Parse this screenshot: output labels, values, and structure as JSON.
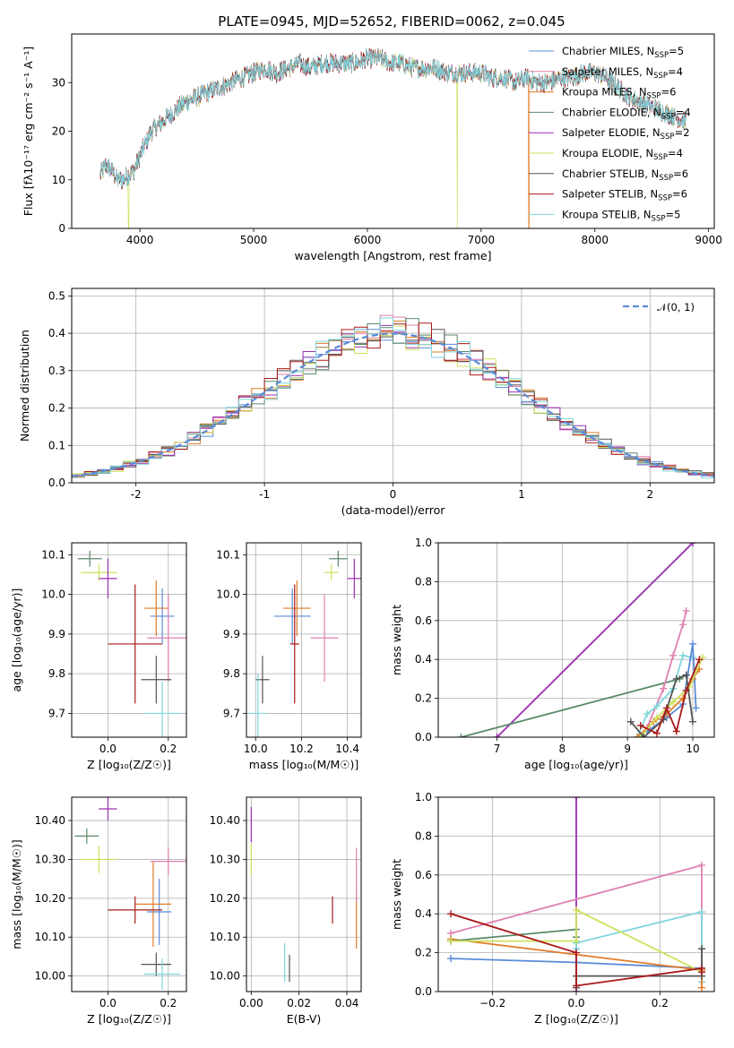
{
  "figure": {
    "title": "PLATE=0945, MJD=52652, FIBERID=0062, z=0.045"
  },
  "chart_data": [
    {
      "id": "spectrum",
      "type": "line",
      "xlabel": "wavelength [Angstrom, rest frame]",
      "ylabel": "Flux [fλ10⁻¹⁷ erg cm⁻² s⁻¹ A⁻¹]",
      "xlim": [
        3400,
        9050
      ],
      "ylim": [
        0,
        40
      ],
      "xticks": [
        4000,
        5000,
        6000,
        7000,
        8000,
        9000
      ],
      "yticks": [
        0,
        10,
        20,
        30
      ],
      "grid": false,
      "legend_position": "right",
      "spectrum_shape": {
        "x": [
          3650,
          3700,
          3750,
          3800,
          3850,
          3900,
          3950,
          4000,
          4100,
          4200,
          4300,
          4400,
          4500,
          4600,
          4700,
          4800,
          4900,
          5000,
          5100,
          5200,
          5300,
          5400,
          5500,
          5600,
          5700,
          5800,
          5900,
          6000,
          6100,
          6200,
          6300,
          6400,
          6500,
          6600,
          6700,
          6800,
          6900,
          7000,
          7100,
          7200,
          7300,
          7400,
          7500,
          7600,
          7700,
          7800,
          7900,
          8000,
          8100,
          8200,
          8300,
          8400,
          8500,
          8600,
          8700,
          8800
        ],
        "y": [
          11,
          13,
          12,
          10,
          10,
          11,
          12,
          15,
          20,
          22,
          24,
          26,
          27,
          28,
          29,
          30,
          31,
          32,
          33,
          32,
          33,
          34,
          33,
          34,
          34,
          34,
          34,
          35,
          35,
          34,
          34,
          33,
          33,
          33,
          32,
          32,
          32,
          32,
          31,
          31,
          30,
          31,
          30,
          30,
          31,
          31,
          32,
          32,
          31,
          29,
          27,
          26,
          25,
          24,
          23,
          22
        ]
      },
      "series": [
        {
          "name": "Chabrier MILES, N_SSP=5",
          "color": "#5b8bd8"
        },
        {
          "name": "Salpeter MILES, N_SSP=4",
          "color": "#e080b0"
        },
        {
          "name": "Kroupa MILES, N_SSP=6",
          "color": "#e07b27"
        },
        {
          "name": "Chabrier ELODIE, N_SSP=4",
          "color": "#5a8a6a"
        },
        {
          "name": "Salpeter ELODIE, N_SSP=2",
          "color": "#9a2fb0"
        },
        {
          "name": "Kroupa ELODIE, N_SSP=4",
          "color": "#cfe05a"
        },
        {
          "name": "Chabrier STELIB, N_SSP=6",
          "color": "#555555"
        },
        {
          "name": "Salpeter STELIB, N_SSP=6",
          "color": "#aa1a1a"
        },
        {
          "name": "Kroupa STELIB, N_SSP=5",
          "color": "#7fd6dd"
        }
      ],
      "drops": [
        {
          "series": 5,
          "x": 3900
        },
        {
          "series": 5,
          "x": 6790
        },
        {
          "series": 2,
          "x": 7420
        }
      ]
    },
    {
      "id": "residuals",
      "type": "line",
      "xlabel": "(data-model)/error",
      "ylabel": "Normed distribution",
      "xlim": [
        -2.5,
        2.5
      ],
      "ylim": [
        0,
        0.52
      ],
      "xticks": [
        -2,
        -1,
        0,
        1,
        2
      ],
      "yticks": [
        0.0,
        0.1,
        0.2,
        0.3,
        0.4,
        0.5
      ],
      "grid": true,
      "legend_position": "top-right",
      "legend": [
        "𝒩(0, 1)"
      ],
      "gaussian": {
        "mean": 0,
        "sigma": 1,
        "color": "#5b8bd8"
      },
      "histogram_series_colors": [
        "#5b8bd8",
        "#e080b0",
        "#e07b27",
        "#5a8a6a",
        "#9a2fb0",
        "#cfe05a",
        "#555555",
        "#aa1a1a",
        "#7fd6dd"
      ]
    },
    {
      "id": "age-vs-Z",
      "type": "scatter",
      "xlabel": "Z [log₁₀(Z/Z☉)]",
      "ylabel": "age  [log₁₀(age/yr)]",
      "xlim": [
        -0.12,
        0.26
      ],
      "ylim": [
        9.64,
        10.13
      ],
      "xticks": [
        0.0,
        0.2
      ],
      "yticks": [
        9.7,
        9.8,
        9.9,
        10.0,
        10.1
      ],
      "grid": true,
      "points": [
        {
          "series": 0,
          "x": 0.18,
          "y": 9.945,
          "xerr": 0.04,
          "yerr": 0.07
        },
        {
          "series": 2,
          "x": 0.16,
          "y": 9.965,
          "xerr": 0.04,
          "yerr": 0.07
        },
        {
          "series": 1,
          "x": 0.2,
          "y": 9.89,
          "xerr": 0.07,
          "yerr": 0.11
        },
        {
          "series": 3,
          "x": -0.06,
          "y": 10.09,
          "xerr": 0.04,
          "yerr": 0.02
        },
        {
          "series": 5,
          "x": -0.03,
          "y": 10.055,
          "xerr": 0.06,
          "yerr": 0.02
        },
        {
          "series": 4,
          "x": 0.0,
          "y": 10.04,
          "xerr": 0.03,
          "yerr": 0.05
        },
        {
          "series": 7,
          "x": 0.09,
          "y": 9.875,
          "xerr": 0.09,
          "yerr": 0.15
        },
        {
          "series": 6,
          "x": 0.16,
          "y": 9.785,
          "xerr": 0.05,
          "yerr": 0.06
        },
        {
          "series": 8,
          "x": 0.18,
          "y": 9.7,
          "xerr": 0.06,
          "yerr": 0.08
        }
      ]
    },
    {
      "id": "age-vs-mass",
      "type": "scatter",
      "xlabel": "mass [log₁₀(M/M☉)]",
      "ylabel": "",
      "xlim": [
        9.96,
        10.46
      ],
      "ylim": [
        9.64,
        10.13
      ],
      "xticks": [
        10.0,
        10.2,
        10.4
      ],
      "yticks": [
        9.7,
        9.8,
        9.9,
        10.0,
        10.1
      ],
      "grid": true,
      "points": [
        {
          "series": 0,
          "x": 10.16,
          "y": 9.945,
          "xerr": 0.08,
          "yerr": 0.07
        },
        {
          "series": 2,
          "x": 10.18,
          "y": 9.965,
          "xerr": 0.06,
          "yerr": 0.07
        },
        {
          "series": 1,
          "x": 10.3,
          "y": 9.89,
          "xerr": 0.06,
          "yerr": 0.11
        },
        {
          "series": 3,
          "x": 10.36,
          "y": 10.09,
          "xerr": 0.04,
          "yerr": 0.02
        },
        {
          "series": 5,
          "x": 10.33,
          "y": 10.055,
          "xerr": 0.03,
          "yerr": 0.02
        },
        {
          "series": 4,
          "x": 10.43,
          "y": 10.04,
          "xerr": 0.03,
          "yerr": 0.05
        },
        {
          "series": 7,
          "x": 10.17,
          "y": 9.875,
          "xerr": 0.02,
          "yerr": 0.15
        },
        {
          "series": 6,
          "x": 10.03,
          "y": 9.785,
          "xerr": 0.03,
          "yerr": 0.06
        },
        {
          "series": 8,
          "x": 10.01,
          "y": 9.7,
          "xerr": 0.04,
          "yerr": 0.1
        }
      ]
    },
    {
      "id": "weight-vs-age",
      "type": "line",
      "xlabel": "age  [log₁₀(age/yr)]",
      "ylabel": "mass weight",
      "xlim": [
        6.1,
        10.33
      ],
      "ylim": [
        0,
        1.0
      ],
      "xticks": [
        7,
        8,
        9,
        10
      ],
      "yticks": [
        0.0,
        0.2,
        0.4,
        0.6,
        0.8,
        1.0
      ],
      "grid": true,
      "lines": [
        {
          "series": 4,
          "x": [
            7.0,
            10.0
          ],
          "y": [
            0.0,
            1.0
          ]
        },
        {
          "series": 3,
          "x": [
            6.45,
            9.8,
            9.9
          ],
          "y": [
            0.0,
            0.3,
            0.32
          ]
        },
        {
          "series": 1,
          "x": [
            9.3,
            9.55,
            9.7,
            9.85,
            9.9
          ],
          "y": [
            0.05,
            0.25,
            0.42,
            0.58,
            0.65
          ]
        },
        {
          "series": 8,
          "x": [
            9.15,
            9.3,
            9.45,
            9.7,
            9.85,
            10.0
          ],
          "y": [
            0.0,
            0.12,
            0.16,
            0.25,
            0.42,
            0.41
          ]
        },
        {
          "series": 0,
          "x": [
            9.3,
            9.6,
            9.85,
            10.0,
            10.05
          ],
          "y": [
            0.03,
            0.1,
            0.17,
            0.48,
            0.15
          ]
        },
        {
          "series": 2,
          "x": [
            9.15,
            9.4,
            9.6,
            9.85,
            10.0,
            10.1
          ],
          "y": [
            0.0,
            0.08,
            0.12,
            0.2,
            0.3,
            0.35
          ]
        },
        {
          "series": 5,
          "x": [
            9.2,
            9.45,
            9.7,
            9.95,
            10.15
          ],
          "y": [
            0.0,
            0.1,
            0.18,
            0.26,
            0.41
          ]
        },
        {
          "series": 6,
          "x": [
            9.05,
            9.25,
            9.55,
            9.75,
            9.9,
            10.0
          ],
          "y": [
            0.08,
            0.0,
            0.09,
            0.3,
            0.32,
            0.08
          ]
        },
        {
          "series": 7,
          "x": [
            9.2,
            9.45,
            9.6,
            9.75,
            9.9,
            10.1
          ],
          "y": [
            0.06,
            0.02,
            0.15,
            0.03,
            0.24,
            0.4
          ]
        }
      ]
    },
    {
      "id": "mass-vs-Z",
      "type": "scatter",
      "xlabel": "Z [log₁₀(Z/Z☉)]",
      "ylabel": "mass [log₁₀(M/M☉)]",
      "xlim": [
        -0.12,
        0.26
      ],
      "ylim": [
        9.96,
        10.46
      ],
      "xticks": [
        0.0,
        0.2
      ],
      "yticks": [
        10.0,
        10.1,
        10.2,
        10.3,
        10.4
      ],
      "grid": true,
      "points": [
        {
          "series": 0,
          "x": 0.17,
          "y": 10.165,
          "xerr": 0.04,
          "yerr": 0.085
        },
        {
          "series": 2,
          "x": 0.15,
          "y": 10.185,
          "xerr": 0.06,
          "yerr": 0.11
        },
        {
          "series": 1,
          "x": 0.2,
          "y": 10.295,
          "xerr": 0.06,
          "yerr": 0.035
        },
        {
          "series": 3,
          "x": -0.07,
          "y": 10.36,
          "xerr": 0.04,
          "yerr": 0.02
        },
        {
          "series": 5,
          "x": -0.03,
          "y": 10.3,
          "xerr": 0.06,
          "yerr": 0.035
        },
        {
          "series": 4,
          "x": 0.0,
          "y": 10.43,
          "xerr": 0.03,
          "yerr": 0.03
        },
        {
          "series": 7,
          "x": 0.09,
          "y": 10.17,
          "xerr": 0.09,
          "yerr": 0.035
        },
        {
          "series": 6,
          "x": 0.16,
          "y": 10.03,
          "xerr": 0.05,
          "yerr": 0.03
        },
        {
          "series": 8,
          "x": 0.18,
          "y": 10.005,
          "xerr": 0.06,
          "yerr": 0.04
        }
      ]
    },
    {
      "id": "mass-vs-EBV",
      "type": "scatter",
      "xlabel": "E(B-V)",
      "ylabel": "",
      "xlim": [
        -0.002,
        0.046
      ],
      "ylim": [
        9.96,
        10.46
      ],
      "xticks": [
        0.0,
        0.02,
        0.04
      ],
      "yticks": [
        10.0,
        10.1,
        10.2,
        10.3,
        10.4
      ],
      "grid": true,
      "points": [
        {
          "series": 4,
          "x": 0.0,
          "y": 10.39,
          "xerr": 0,
          "yerr": 0.045
        },
        {
          "series": 5,
          "x": 0.0,
          "y": 10.3,
          "xerr": 0,
          "yerr": 0.04
        },
        {
          "series": 2,
          "x": 0.044,
          "y": 10.14,
          "xerr": 0,
          "yerr": 0.07
        },
        {
          "series": 1,
          "x": 0.044,
          "y": 10.26,
          "xerr": 0,
          "yerr": 0.07
        },
        {
          "series": 7,
          "x": 0.034,
          "y": 10.17,
          "xerr": 0,
          "yerr": 0.035
        },
        {
          "series": 8,
          "x": 0.014,
          "y": 10.035,
          "xerr": 0,
          "yerr": 0.05
        },
        {
          "series": 6,
          "x": 0.016,
          "y": 10.02,
          "xerr": 0,
          "yerr": 0.035
        }
      ]
    },
    {
      "id": "weight-vs-Z",
      "type": "line",
      "xlabel": "Z [log₁₀(Z/Z☉)]",
      "ylabel": "mass weight",
      "xlim": [
        -0.33,
        0.33
      ],
      "ylim": [
        0,
        1.0
      ],
      "xticks": [
        -0.2,
        0.0,
        0.2
      ],
      "yticks": [
        0.0,
        0.2,
        0.4,
        0.6,
        0.8,
        1.0
      ],
      "grid": true,
      "lines": [
        {
          "series": 4,
          "x": [
            0.0,
            0.0
          ],
          "y": [
            0.0,
            1.0
          ]
        },
        {
          "series": 1,
          "x": [
            -0.3,
            0.3,
            0.3
          ],
          "y": [
            0.3,
            0.65,
            0.05
          ]
        },
        {
          "series": 8,
          "x": [
            0.0,
            0.0,
            0.3,
            0.3
          ],
          "y": [
            0.22,
            0.25,
            0.41,
            0.05
          ]
        },
        {
          "series": 0,
          "x": [
            -0.3,
            0.0,
            0.3
          ],
          "y": [
            0.17,
            0.15,
            0.12
          ]
        },
        {
          "series": 2,
          "x": [
            -0.3,
            0.3,
            0.3
          ],
          "y": [
            0.27,
            0.11,
            0.02
          ]
        },
        {
          "series": 3,
          "x": [
            -0.3,
            0.0,
            0.0
          ],
          "y": [
            0.26,
            0.32,
            0.28
          ]
        },
        {
          "series": 5,
          "x": [
            -0.3,
            0.0,
            0.0,
            0.3
          ],
          "y": [
            0.26,
            0.26,
            0.42,
            0.1
          ]
        },
        {
          "series": 6,
          "x": [
            0.0,
            0.0,
            0.3,
            0.3
          ],
          "y": [
            0.02,
            0.08,
            0.08,
            0.22
          ]
        },
        {
          "series": 7,
          "x": [
            -0.3,
            0.0,
            0.0,
            0.3,
            0.3
          ],
          "y": [
            0.4,
            0.2,
            0.03,
            0.12,
            0.1
          ]
        }
      ]
    }
  ]
}
